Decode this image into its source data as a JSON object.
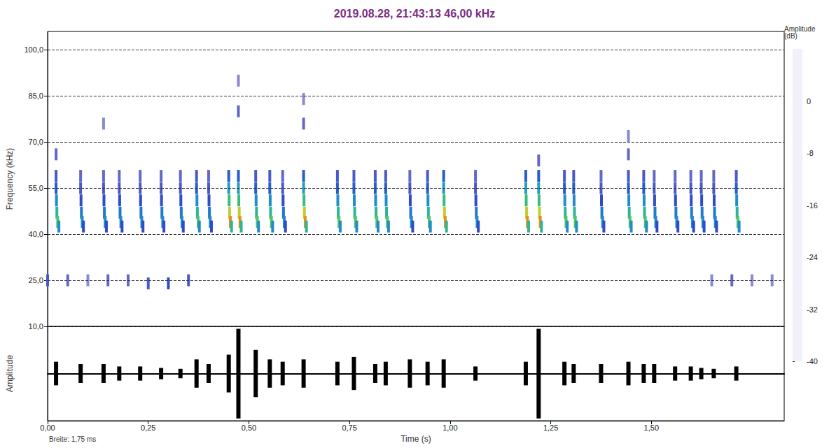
{
  "chart_data": [
    {
      "type": "heatmap",
      "title": "2019.08.28, 21:43:13 46,00 kHz",
      "y_label": "Frequency (kHz)",
      "xlim": [
        0,
        1.83
      ],
      "xticks": [
        {
          "value": 0,
          "label": "0,00"
        },
        {
          "value": 0.25,
          "label": "0,25"
        },
        {
          "value": 0.5,
          "label": "0,50"
        },
        {
          "value": 0.75,
          "label": "0,75"
        },
        {
          "value": 1,
          "label": "1,00"
        },
        {
          "value": 1.25,
          "label": "1,25"
        },
        {
          "value": 1.5,
          "label": "1,50"
        }
      ],
      "ylim": [
        10,
        106
      ],
      "yticks": [
        {
          "value": 10,
          "label": "10,0"
        },
        {
          "value": 25,
          "label": "25,0"
        },
        {
          "value": 40,
          "label": "40,0"
        },
        {
          "value": 55,
          "label": "55,0"
        },
        {
          "value": 70,
          "label": "70,0"
        },
        {
          "value": 85,
          "label": "85,0"
        },
        {
          "value": 100,
          "label": "100,0"
        }
      ],
      "grid": true,
      "tick_labels": "y",
      "colorbar_label": "Amplitude (dB)",
      "colorbar_lim": [
        -40,
        8
      ],
      "colorbar_ticks": [
        0,
        -8,
        -16,
        -24,
        -32,
        -40
      ],
      "cells": [
        [
          0.021,
          59,
          -28
        ],
        [
          0.021,
          55,
          -24
        ],
        [
          0.022,
          51,
          -20
        ],
        [
          0.023,
          47,
          -14
        ],
        [
          0.025,
          44,
          -10
        ],
        [
          0.028,
          42.5,
          -20
        ],
        [
          0.082,
          59,
          -30
        ],
        [
          0.082,
          55,
          -28
        ],
        [
          0.083,
          51,
          -26
        ],
        [
          0.084,
          47,
          -22
        ],
        [
          0.086,
          44,
          -20
        ],
        [
          0.089,
          42.5,
          -26
        ],
        [
          0.139,
          59,
          -30
        ],
        [
          0.139,
          55,
          -28
        ],
        [
          0.14,
          51,
          -26
        ],
        [
          0.141,
          47,
          -22
        ],
        [
          0.143,
          44,
          -20
        ],
        [
          0.146,
          42.5,
          -26
        ],
        [
          0.178,
          59,
          -30
        ],
        [
          0.178,
          55,
          -28
        ],
        [
          0.179,
          51,
          -26
        ],
        [
          0.18,
          47,
          -22
        ],
        [
          0.182,
          44,
          -20
        ],
        [
          0.185,
          42.5,
          -26
        ],
        [
          0.23,
          59,
          -30
        ],
        [
          0.23,
          55,
          -28
        ],
        [
          0.231,
          51,
          -26
        ],
        [
          0.232,
          47,
          -22
        ],
        [
          0.234,
          44,
          -20
        ],
        [
          0.237,
          42.5,
          -26
        ],
        [
          0.282,
          59,
          -30
        ],
        [
          0.282,
          55,
          -28
        ],
        [
          0.283,
          51,
          -26
        ],
        [
          0.284,
          47,
          -22
        ],
        [
          0.286,
          44,
          -20
        ],
        [
          0.289,
          42.5,
          -26
        ],
        [
          0.33,
          59,
          -30
        ],
        [
          0.33,
          55,
          -28
        ],
        [
          0.331,
          51,
          -26
        ],
        [
          0.332,
          47,
          -22
        ],
        [
          0.334,
          44,
          -20
        ],
        [
          0.337,
          42.5,
          -26
        ],
        [
          0.37,
          59,
          -28
        ],
        [
          0.37,
          55,
          -24
        ],
        [
          0.371,
          51,
          -20
        ],
        [
          0.372,
          47,
          -14
        ],
        [
          0.374,
          44,
          -10
        ],
        [
          0.377,
          42.5,
          -20
        ],
        [
          0.4,
          59,
          -30
        ],
        [
          0.4,
          55,
          -28
        ],
        [
          0.401,
          51,
          -26
        ],
        [
          0.402,
          47,
          -22
        ],
        [
          0.404,
          44,
          -20
        ],
        [
          0.407,
          42.5,
          -26
        ],
        [
          0.45,
          59,
          -24
        ],
        [
          0.45,
          55,
          -18
        ],
        [
          0.451,
          51,
          -12
        ],
        [
          0.452,
          47,
          -4
        ],
        [
          0.454,
          44,
          2
        ],
        [
          0.457,
          42.5,
          -14
        ],
        [
          0.474,
          59,
          -24
        ],
        [
          0.474,
          55,
          -18
        ],
        [
          0.475,
          51,
          -12
        ],
        [
          0.476,
          47,
          -4
        ],
        [
          0.478,
          44,
          2
        ],
        [
          0.481,
          42.5,
          -14
        ],
        [
          0.517,
          59,
          -28
        ],
        [
          0.517,
          55,
          -24
        ],
        [
          0.518,
          51,
          -20
        ],
        [
          0.519,
          47,
          -14
        ],
        [
          0.521,
          44,
          -10
        ],
        [
          0.524,
          42.5,
          -20
        ],
        [
          0.552,
          59,
          -28
        ],
        [
          0.552,
          55,
          -24
        ],
        [
          0.553,
          51,
          -20
        ],
        [
          0.554,
          47,
          -14
        ],
        [
          0.556,
          44,
          -10
        ],
        [
          0.559,
          42.5,
          -20
        ],
        [
          0.584,
          59,
          -30
        ],
        [
          0.584,
          55,
          -28
        ],
        [
          0.585,
          51,
          -26
        ],
        [
          0.586,
          47,
          -22
        ],
        [
          0.588,
          44,
          -20
        ],
        [
          0.591,
          42.5,
          -26
        ],
        [
          0.636,
          59,
          -24
        ],
        [
          0.636,
          55,
          -18
        ],
        [
          0.637,
          51,
          -12
        ],
        [
          0.638,
          47,
          -4
        ],
        [
          0.64,
          44,
          2
        ],
        [
          0.643,
          42.5,
          -14
        ],
        [
          0.72,
          59,
          -28
        ],
        [
          0.72,
          55,
          -24
        ],
        [
          0.721,
          51,
          -20
        ],
        [
          0.722,
          47,
          -14
        ],
        [
          0.724,
          44,
          -10
        ],
        [
          0.727,
          42.5,
          -20
        ],
        [
          0.761,
          59,
          -28
        ],
        [
          0.761,
          55,
          -24
        ],
        [
          0.762,
          51,
          -20
        ],
        [
          0.763,
          47,
          -14
        ],
        [
          0.765,
          44,
          -10
        ],
        [
          0.768,
          42.5,
          -20
        ],
        [
          0.814,
          59,
          -28
        ],
        [
          0.814,
          55,
          -24
        ],
        [
          0.815,
          51,
          -20
        ],
        [
          0.816,
          47,
          -14
        ],
        [
          0.818,
          44,
          -10
        ],
        [
          0.821,
          42.5,
          -20
        ],
        [
          0.84,
          59,
          -28
        ],
        [
          0.84,
          55,
          -24
        ],
        [
          0.841,
          51,
          -20
        ],
        [
          0.842,
          47,
          -14
        ],
        [
          0.844,
          44,
          -10
        ],
        [
          0.847,
          42.5,
          -20
        ],
        [
          0.9,
          59,
          -30
        ],
        [
          0.9,
          55,
          -28
        ],
        [
          0.901,
          51,
          -26
        ],
        [
          0.902,
          47,
          -22
        ],
        [
          0.904,
          44,
          -20
        ],
        [
          0.907,
          42.5,
          -26
        ],
        [
          0.944,
          59,
          -28
        ],
        [
          0.944,
          55,
          -24
        ],
        [
          0.945,
          51,
          -20
        ],
        [
          0.946,
          47,
          -14
        ],
        [
          0.948,
          44,
          -10
        ],
        [
          0.951,
          42.5,
          -20
        ],
        [
          0.984,
          59,
          -24
        ],
        [
          0.984,
          55,
          -18
        ],
        [
          0.985,
          51,
          -12
        ],
        [
          0.986,
          47,
          -4
        ],
        [
          0.988,
          44,
          2
        ],
        [
          0.991,
          42.5,
          -14
        ],
        [
          1.063,
          59,
          -30
        ],
        [
          1.063,
          55,
          -28
        ],
        [
          1.064,
          51,
          -26
        ],
        [
          1.065,
          47,
          -22
        ],
        [
          1.067,
          44,
          -20
        ],
        [
          1.07,
          42.5,
          -26
        ],
        [
          1.188,
          59,
          -24
        ],
        [
          1.188,
          55,
          -18
        ],
        [
          1.189,
          51,
          -12
        ],
        [
          1.19,
          47,
          -4
        ],
        [
          1.192,
          44,
          2
        ],
        [
          1.195,
          42.5,
          -14
        ],
        [
          1.22,
          59,
          -24
        ],
        [
          1.22,
          55,
          -18
        ],
        [
          1.221,
          51,
          -12
        ],
        [
          1.222,
          47,
          -4
        ],
        [
          1.224,
          44,
          2
        ],
        [
          1.227,
          42.5,
          -14
        ],
        [
          1.284,
          59,
          -28
        ],
        [
          1.284,
          55,
          -24
        ],
        [
          1.285,
          51,
          -20
        ],
        [
          1.286,
          47,
          -14
        ],
        [
          1.288,
          44,
          -10
        ],
        [
          1.291,
          42.5,
          -20
        ],
        [
          1.307,
          59,
          -28
        ],
        [
          1.307,
          55,
          -24
        ],
        [
          1.308,
          51,
          -20
        ],
        [
          1.309,
          47,
          -14
        ],
        [
          1.311,
          44,
          -10
        ],
        [
          1.314,
          42.5,
          -20
        ],
        [
          1.375,
          59,
          -30
        ],
        [
          1.375,
          55,
          -28
        ],
        [
          1.376,
          51,
          -26
        ],
        [
          1.377,
          47,
          -22
        ],
        [
          1.379,
          44,
          -20
        ],
        [
          1.382,
          42.5,
          -26
        ],
        [
          1.443,
          59,
          -28
        ],
        [
          1.443,
          55,
          -24
        ],
        [
          1.444,
          51,
          -20
        ],
        [
          1.445,
          47,
          -14
        ],
        [
          1.447,
          44,
          -10
        ],
        [
          1.45,
          42.5,
          -20
        ],
        [
          1.481,
          59,
          -28
        ],
        [
          1.481,
          55,
          -24
        ],
        [
          1.482,
          51,
          -20
        ],
        [
          1.483,
          47,
          -14
        ],
        [
          1.485,
          44,
          -10
        ],
        [
          1.488,
          42.5,
          -20
        ],
        [
          1.507,
          59,
          -30
        ],
        [
          1.507,
          55,
          -28
        ],
        [
          1.508,
          51,
          -26
        ],
        [
          1.509,
          47,
          -22
        ],
        [
          1.511,
          44,
          -20
        ],
        [
          1.514,
          42.5,
          -26
        ],
        [
          1.559,
          59,
          -30
        ],
        [
          1.559,
          55,
          -28
        ],
        [
          1.56,
          51,
          -26
        ],
        [
          1.561,
          47,
          -22
        ],
        [
          1.563,
          44,
          -20
        ],
        [
          1.566,
          42.5,
          -26
        ],
        [
          1.598,
          59,
          -30
        ],
        [
          1.598,
          55,
          -28
        ],
        [
          1.599,
          51,
          -26
        ],
        [
          1.6,
          47,
          -22
        ],
        [
          1.602,
          44,
          -20
        ],
        [
          1.605,
          42.5,
          -26
        ],
        [
          1.624,
          59,
          -30
        ],
        [
          1.624,
          55,
          -28
        ],
        [
          1.625,
          51,
          -26
        ],
        [
          1.626,
          47,
          -22
        ],
        [
          1.628,
          44,
          -20
        ],
        [
          1.631,
          42.5,
          -26
        ],
        [
          1.655,
          59,
          -30
        ],
        [
          1.655,
          55,
          -28
        ],
        [
          1.656,
          51,
          -26
        ],
        [
          1.657,
          47,
          -22
        ],
        [
          1.659,
          44,
          -20
        ],
        [
          1.662,
          42.5,
          -26
        ],
        [
          1.711,
          59,
          -28
        ],
        [
          1.711,
          55,
          -24
        ],
        [
          1.712,
          51,
          -20
        ],
        [
          1.713,
          47,
          -14
        ],
        [
          1.715,
          44,
          -10
        ],
        [
          1.718,
          42.5,
          -20
        ],
        [
          0.021,
          66,
          -30
        ],
        [
          0.139,
          76,
          -32
        ],
        [
          0.474,
          80,
          -30
        ],
        [
          0.474,
          90,
          -32
        ],
        [
          0.636,
          76,
          -30
        ],
        [
          0.636,
          84,
          -32
        ],
        [
          1.22,
          64,
          -30
        ],
        [
          1.443,
          66,
          -30
        ],
        [
          1.443,
          72,
          -32
        ],
        [
          0.0,
          25,
          -28
        ],
        [
          0.05,
          25,
          -30
        ],
        [
          0.1,
          25,
          -32
        ],
        [
          0.15,
          25,
          -30
        ],
        [
          0.2,
          25,
          -30
        ],
        [
          0.25,
          24,
          -28
        ],
        [
          0.3,
          24,
          -26
        ],
        [
          0.35,
          25,
          -28
        ],
        [
          1.65,
          25,
          -32
        ],
        [
          1.7,
          25,
          -30
        ],
        [
          1.75,
          25,
          -32
        ],
        [
          1.8,
          25,
          -32
        ]
      ]
    },
    {
      "type": "waveform",
      "x_label": "Time (s)",
      "y_label": "Amplitude",
      "annotation": "Breite: 1,75 ms",
      "xlim": [
        0,
        1.83
      ],
      "xticks": [
        {
          "value": 0,
          "label": "0,00"
        },
        {
          "value": 0.25,
          "label": "0,25"
        },
        {
          "value": 0.5,
          "label": "0,50"
        },
        {
          "value": 0.75,
          "label": "0,75"
        },
        {
          "value": 1,
          "label": "1,00"
        },
        {
          "value": 1.25,
          "label": "1,25"
        },
        {
          "value": 1.5,
          "label": "1,50"
        }
      ],
      "ylim": [
        -10,
        10
      ],
      "tick_labels": "x",
      "color": "#000000",
      "x": [
        0.021,
        0.082,
        0.139,
        0.178,
        0.23,
        0.282,
        0.33,
        0.37,
        0.4,
        0.45,
        0.474,
        0.517,
        0.552,
        0.584,
        0.636,
        0.72,
        0.761,
        0.814,
        0.84,
        0.9,
        0.944,
        0.984,
        1.063,
        1.188,
        1.22,
        1.284,
        1.307,
        1.375,
        1.443,
        1.481,
        1.507,
        1.559,
        1.598,
        1.624,
        1.655,
        1.711
      ],
      "values": [
        2.5,
        2,
        2,
        1.5,
        1.5,
        1.2,
        1,
        3,
        2,
        4,
        9.5,
        5,
        3,
        2.5,
        3,
        2.5,
        3.5,
        2,
        2.5,
        3,
        2.5,
        3,
        1.5,
        2.5,
        9.5,
        2.5,
        2,
        2,
        2.5,
        2,
        2,
        1.5,
        1.5,
        1.2,
        1,
        1.5
      ]
    }
  ]
}
